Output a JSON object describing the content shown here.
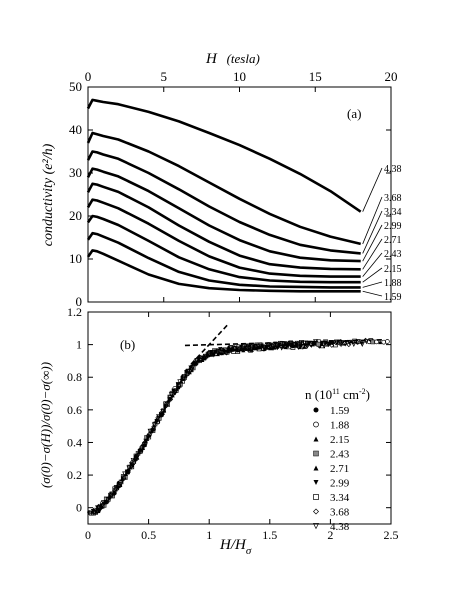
{
  "chart_data": [
    {
      "type": "line",
      "panel_label": "(a)",
      "xlabel_top_italic": "H",
      "xlabel_top_unit": "(tesla)",
      "ylabel": "conductivity (e²/h)",
      "x_range": [
        0,
        20
      ],
      "y_range": [
        0,
        50
      ],
      "x_ticks": [
        0,
        5,
        10,
        15,
        20
      ],
      "y_ticks": [
        0,
        10,
        20,
        30,
        40,
        50
      ],
      "x_tick_labels": [
        "0",
        "5",
        "10",
        "15",
        "20"
      ],
      "y_tick_labels": [
        "0",
        "10",
        "20",
        "30",
        "40",
        "50"
      ],
      "curve_labels": [
        "4.38",
        "3.68",
        "3.34",
        "2.99",
        "2.71",
        "2.43",
        "2.15",
        "1.88",
        "1.59"
      ],
      "series": [
        {
          "name": "4.38",
          "x": [
            0,
            0.3,
            0.6,
            1,
            2,
            4,
            6,
            8,
            10,
            12,
            14,
            16,
            18
          ],
          "y": [
            45,
            47,
            46.8,
            46.5,
            46,
            44.2,
            42,
            39.3,
            36.5,
            33.3,
            29.8,
            25.8,
            21
          ]
        },
        {
          "name": "3.68",
          "x": [
            0,
            0.3,
            0.6,
            1,
            2,
            4,
            6,
            8,
            10,
            12,
            14,
            16,
            18
          ],
          "y": [
            37,
            39.3,
            39,
            38.6,
            37.8,
            35,
            31.6,
            27.8,
            24,
            20.5,
            17.5,
            15.2,
            13.5
          ]
        },
        {
          "name": "3.34",
          "x": [
            0,
            0.3,
            0.6,
            1,
            2,
            4,
            6,
            8,
            10,
            12,
            14,
            16,
            18
          ],
          "y": [
            33,
            35,
            34.8,
            34.3,
            33.3,
            30,
            26.2,
            22.2,
            18.6,
            15.6,
            13.3,
            12,
            11.3
          ]
        },
        {
          "name": "2.99",
          "x": [
            0,
            0.3,
            0.6,
            1,
            2,
            4,
            6,
            8,
            10,
            12,
            14,
            16,
            18
          ],
          "y": [
            29,
            31,
            30.8,
            30.3,
            29.2,
            25.8,
            21.8,
            17.8,
            14.4,
            11.8,
            10.3,
            9.7,
            9.5
          ]
        },
        {
          "name": "2.71",
          "x": [
            0,
            0.3,
            0.6,
            1,
            2,
            4,
            6,
            8,
            10,
            12,
            14,
            16,
            18
          ],
          "y": [
            25.5,
            27.5,
            27.3,
            26.8,
            25.6,
            22,
            17.8,
            14,
            10.8,
            8.8,
            8,
            7.7,
            7.6
          ]
        },
        {
          "name": "2.43",
          "x": [
            0,
            0.3,
            0.6,
            1,
            2,
            4,
            6,
            8,
            10,
            12,
            14,
            16,
            18
          ],
          "y": [
            22,
            23.8,
            23.6,
            23.1,
            21.8,
            18.2,
            14.2,
            10.6,
            8,
            6.6,
            6.1,
            5.9,
            5.9
          ]
        },
        {
          "name": "2.15",
          "x": [
            0,
            0.3,
            0.6,
            1,
            2,
            4,
            6,
            8,
            10,
            12,
            14,
            16,
            18
          ],
          "y": [
            18.5,
            20,
            19.8,
            19.3,
            17.9,
            14.2,
            10.4,
            7.6,
            5.8,
            5,
            4.7,
            4.6,
            4.6
          ]
        },
        {
          "name": "1.88",
          "x": [
            0,
            0.3,
            0.6,
            1,
            2,
            4,
            6,
            8,
            10,
            12,
            14,
            16,
            18
          ],
          "y": [
            14.5,
            16,
            15.8,
            15.2,
            13.8,
            10.2,
            7,
            5,
            4,
            3.6,
            3.5,
            3.4,
            3.4
          ]
        },
        {
          "name": "1.59",
          "x": [
            0,
            0.3,
            0.6,
            1,
            2,
            4,
            6,
            8,
            10,
            12,
            14,
            16,
            18
          ],
          "y": [
            10.5,
            12,
            11.8,
            11.2,
            9.6,
            6.4,
            4.2,
            3.2,
            2.8,
            2.6,
            2.5,
            2.5,
            2.5
          ]
        }
      ]
    },
    {
      "type": "scatter",
      "panel_label": "(b)",
      "xlabel_main": "H/H",
      "xlabel_sub": "σ",
      "ylabel": "(σ(0)−σ(H))/σ(0)−σ(∞))",
      "x_range": [
        0,
        2.5
      ],
      "y_range": [
        -0.1,
        1.2
      ],
      "x_ticks": [
        0,
        0.5,
        1,
        1.5,
        2,
        2.5
      ],
      "y_ticks": [
        0,
        0.2,
        0.4,
        0.6,
        0.8,
        1,
        1.2
      ],
      "x_tick_labels": [
        "0",
        "0.5",
        "1",
        "1.5",
        "2",
        "2.5"
      ],
      "y_tick_labels": [
        "0",
        "0.2",
        "0.4",
        "0.6",
        "0.8",
        "1",
        "1.2"
      ],
      "legend_title_prefix": "n (10",
      "legend_title_exp1": "11",
      "legend_title_mid": " cm",
      "legend_title_exp2": "-2",
      "legend_title_suffix": ")",
      "legend_position": "right",
      "series": [
        {
          "name": "1.59",
          "marker": "filled-circle"
        },
        {
          "name": "1.88",
          "marker": "open-circle-dot"
        },
        {
          "name": "2.15",
          "marker": "filled-triangle"
        },
        {
          "name": "2.43",
          "marker": "square-dot"
        },
        {
          "name": "2.71",
          "marker": "filled-triangle"
        },
        {
          "name": "2.99",
          "marker": "filled-triangle-down"
        },
        {
          "name": "3.34",
          "marker": "open-square"
        },
        {
          "name": "3.68",
          "marker": "open-diamond"
        },
        {
          "name": "4.38",
          "marker": "open-triangle-down"
        }
      ],
      "collapse_curve": {
        "x": [
          0,
          0.05,
          0.1,
          0.15,
          0.2,
          0.3,
          0.4,
          0.5,
          0.6,
          0.7,
          0.8,
          0.9,
          1.0,
          1.1,
          1.2,
          1.4,
          1.6,
          1.8,
          2.0,
          2.2,
          2.4,
          2.5
        ],
        "y": [
          -0.03,
          -0.02,
          0.0,
          0.04,
          0.08,
          0.19,
          0.31,
          0.44,
          0.57,
          0.7,
          0.81,
          0.9,
          0.945,
          0.96,
          0.97,
          0.985,
          0.995,
          1.0,
          1.01,
          1.015,
          1.02,
          1.025
        ]
      },
      "guide_lines": [
        {
          "x": [
            0.8,
            2.45
          ],
          "y": [
            0.995,
            1.03
          ]
        },
        {
          "x": [
            0.85,
            1.15
          ],
          "y": [
            0.88,
            1.12
          ]
        }
      ]
    }
  ]
}
